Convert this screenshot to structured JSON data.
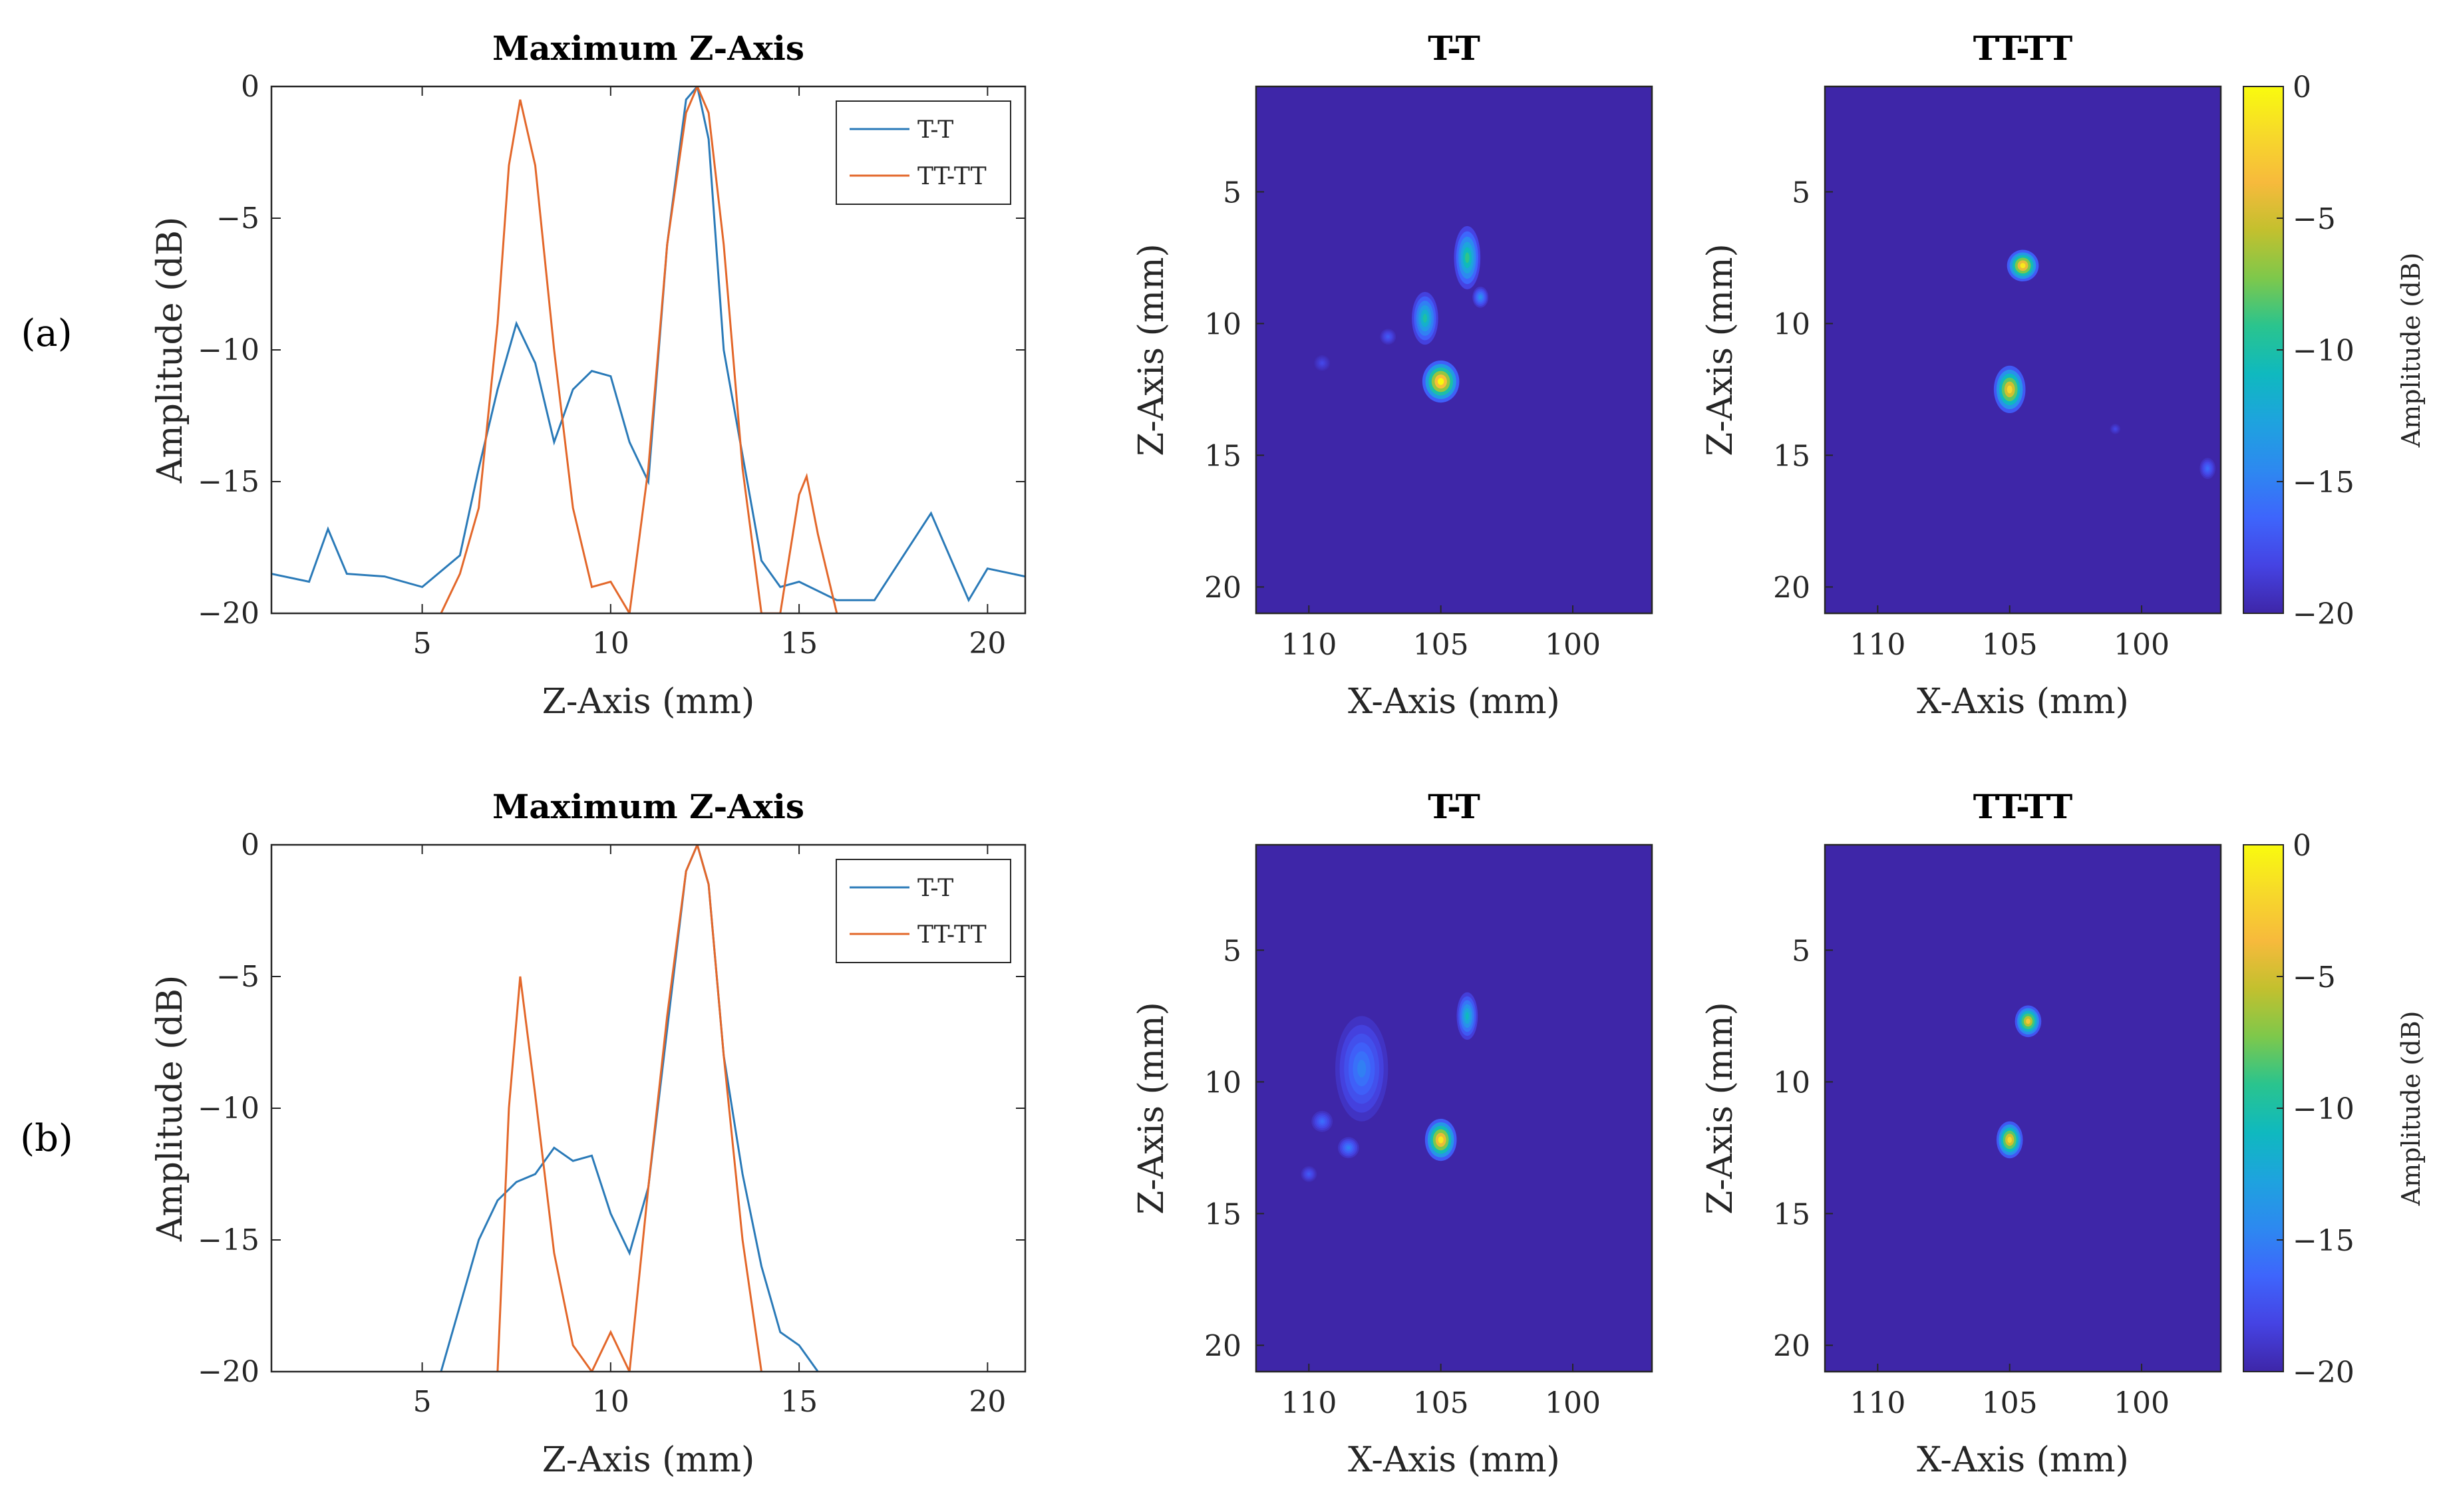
{
  "figure": {
    "row_labels": [
      "(a)",
      "(b)"
    ]
  },
  "colormap": [
    "#3e26a8",
    "#4543e3",
    "#3e65fc",
    "#2d89f0",
    "#1ea3de",
    "#0fb9bf",
    "#2ac48e",
    "#7ec84b",
    "#c3c02e",
    "#f7ba3c",
    "#f7d92a",
    "#f9fb0e"
  ],
  "colors": {
    "t_t": "#2a7ab8",
    "tt_tt": "#e3672a"
  },
  "chart_data": [
    {
      "type": "line",
      "panel": "a-profile",
      "title": "Maximum Z-Axis",
      "xlabel": "Z-Axis (mm)",
      "ylabel": "Amplitude (dB)",
      "xlim": [
        1,
        21
      ],
      "ylim": [
        -20,
        0
      ],
      "xticks": [
        "5",
        "10",
        "15",
        "20"
      ],
      "yticks": [
        "0",
        "−5",
        "−10",
        "−15",
        "−20"
      ],
      "legend_position": "top-right",
      "series": [
        {
          "name": "T-T",
          "x": [
            1.0,
            2.0,
            2.5,
            3.0,
            4.0,
            5.0,
            6.0,
            6.5,
            7.0,
            7.5,
            8.0,
            8.5,
            9.0,
            9.5,
            10.0,
            10.5,
            11.0,
            11.5,
            12.0,
            12.3,
            12.6,
            13.0,
            13.5,
            14.0,
            14.5,
            15.0,
            16.0,
            17.0,
            18.5,
            19.5,
            20.0,
            21.0
          ],
          "y": [
            -18.5,
            -18.8,
            -16.8,
            -18.5,
            -18.6,
            -19.0,
            -17.8,
            -14.5,
            -11.5,
            -9.0,
            -10.5,
            -13.5,
            -11.5,
            -10.8,
            -11.0,
            -13.5,
            -15.0,
            -6.0,
            -0.5,
            0.0,
            -2.0,
            -10.0,
            -14.0,
            -18.0,
            -19.0,
            -18.8,
            -19.5,
            -19.5,
            -16.2,
            -19.5,
            -18.3,
            -18.6
          ]
        },
        {
          "name": "TT-TT",
          "x": [
            5.5,
            6.0,
            6.5,
            7.0,
            7.3,
            7.6,
            8.0,
            8.5,
            9.0,
            9.5,
            10.0,
            10.5,
            11.0,
            11.5,
            12.0,
            12.3,
            12.6,
            13.0,
            13.5,
            14.0,
            14.5,
            15.0,
            15.2,
            15.5,
            16.0
          ],
          "y": [
            -20.0,
            -18.5,
            -16.0,
            -9.0,
            -3.0,
            -0.5,
            -3.0,
            -10.0,
            -16.0,
            -19.0,
            -18.8,
            -20.0,
            -14.5,
            -6.0,
            -1.0,
            0.0,
            -1.0,
            -6.0,
            -14.5,
            -20.0,
            -20.0,
            -15.5,
            -14.8,
            -17.0,
            -20.0
          ]
        }
      ]
    },
    {
      "type": "heatmap",
      "panel": "a-T-T",
      "title": "T-T",
      "xlabel": "X-Axis (mm)",
      "ylabel": "Z-Axis (mm)",
      "xlim": [
        112,
        97
      ],
      "ylim": [
        21,
        1
      ],
      "xticks": [
        "110",
        "105",
        "100"
      ],
      "yticks": [
        "5",
        "10",
        "15",
        "20"
      ],
      "value_range": [
        -20,
        0
      ],
      "background": -20,
      "spots": [
        {
          "x": 105,
          "z": 12.2,
          "rx": 0.7,
          "rz": 0.8,
          "peak": 0
        },
        {
          "x": 105.6,
          "z": 9.8,
          "rx": 0.5,
          "rz": 1.0,
          "peak": -10
        },
        {
          "x": 104,
          "z": 7.5,
          "rx": 0.5,
          "rz": 1.2,
          "peak": -9
        },
        {
          "x": 103.5,
          "z": 9.0,
          "rx": 0.3,
          "rz": 0.4,
          "peak": -14
        },
        {
          "x": 107,
          "z": 10.5,
          "rx": 0.3,
          "rz": 0.3,
          "peak": -17
        },
        {
          "x": 109.5,
          "z": 11.5,
          "rx": 0.3,
          "rz": 0.3,
          "peak": -18
        }
      ]
    },
    {
      "type": "heatmap",
      "panel": "a-TT-TT",
      "title": "TT-TT",
      "xlabel": "X-Axis (mm)",
      "ylabel": "Z-Axis (mm)",
      "xlim": [
        112,
        97
      ],
      "ylim": [
        21,
        1
      ],
      "xticks": [
        "110",
        "105",
        "100"
      ],
      "yticks": [
        "5",
        "10",
        "15",
        "20"
      ],
      "value_range": [
        -20,
        0
      ],
      "background": -20,
      "spots": [
        {
          "x": 104.5,
          "z": 7.8,
          "rx": 0.6,
          "rz": 0.6,
          "peak": -1
        },
        {
          "x": 105,
          "z": 12.5,
          "rx": 0.6,
          "rz": 0.9,
          "peak": -2
        },
        {
          "x": 97.5,
          "z": 15.5,
          "rx": 0.3,
          "rz": 0.4,
          "peak": -16
        },
        {
          "x": 101,
          "z": 14,
          "rx": 0.2,
          "rz": 0.2,
          "peak": -18
        }
      ],
      "colorbar": {
        "label": "Amplitude (dB)",
        "ticks": [
          "0",
          "−5",
          "−10",
          "−15",
          "−20"
        ]
      }
    },
    {
      "type": "line",
      "panel": "b-profile",
      "title": "Maximum Z-Axis",
      "xlabel": "Z-Axis (mm)",
      "ylabel": "Amplitude (dB)",
      "xlim": [
        1,
        21
      ],
      "ylim": [
        -20,
        0
      ],
      "xticks": [
        "5",
        "10",
        "15",
        "20"
      ],
      "yticks": [
        "0",
        "−5",
        "−10",
        "−15",
        "−20"
      ],
      "legend_position": "top-right",
      "series": [
        {
          "name": "T-T",
          "x": [
            5.5,
            6.0,
            6.5,
            7.0,
            7.5,
            8.0,
            8.5,
            9.0,
            9.5,
            10.0,
            10.5,
            11.0,
            11.5,
            12.0,
            12.3,
            12.6,
            13.0,
            13.5,
            14.0,
            14.5,
            15.0,
            15.5
          ],
          "y": [
            -20.0,
            -17.5,
            -15.0,
            -13.5,
            -12.8,
            -12.5,
            -11.5,
            -12.0,
            -11.8,
            -14.0,
            -15.5,
            -13.0,
            -7.0,
            -1.0,
            0.0,
            -1.5,
            -8.0,
            -12.5,
            -16.0,
            -18.5,
            -19.0,
            -20.0
          ]
        },
        {
          "name": "TT-TT",
          "x": [
            7.0,
            7.3,
            7.6,
            8.0,
            8.5,
            9.0,
            9.5,
            10.0,
            10.5,
            11.0,
            11.5,
            12.0,
            12.3,
            12.6,
            13.0,
            13.5,
            14.0
          ],
          "y": [
            -20.0,
            -10.0,
            -5.0,
            -9.5,
            -15.5,
            -19.0,
            -20.0,
            -18.5,
            -20.0,
            -13.0,
            -6.5,
            -1.0,
            0.0,
            -1.5,
            -8.0,
            -15.0,
            -20.0
          ]
        }
      ]
    },
    {
      "type": "heatmap",
      "panel": "b-T-T",
      "title": "T-T",
      "xlabel": "X-Axis (mm)",
      "ylabel": "Z-Axis (mm)",
      "xlim": [
        112,
        97
      ],
      "ylim": [
        21,
        1
      ],
      "xticks": [
        "110",
        "105",
        "100"
      ],
      "yticks": [
        "5",
        "10",
        "15",
        "20"
      ],
      "value_range": [
        -20,
        0
      ],
      "background": -20,
      "spots": [
        {
          "x": 105,
          "z": 12.2,
          "rx": 0.6,
          "rz": 0.8,
          "peak": -1
        },
        {
          "x": 104,
          "z": 7.5,
          "rx": 0.4,
          "rz": 0.9,
          "peak": -11
        },
        {
          "x": 108,
          "z": 9.5,
          "rx": 1.0,
          "rz": 2.0,
          "peak": -15
        },
        {
          "x": 109.5,
          "z": 11.5,
          "rx": 0.4,
          "rz": 0.4,
          "peak": -16
        },
        {
          "x": 108.5,
          "z": 12.5,
          "rx": 0.4,
          "rz": 0.4,
          "peak": -15
        },
        {
          "x": 110,
          "z": 13.5,
          "rx": 0.3,
          "rz": 0.3,
          "peak": -17
        }
      ]
    },
    {
      "type": "heatmap",
      "panel": "b-TT-TT",
      "title": "TT-TT",
      "xlabel": "X-Axis (mm)",
      "ylabel": "Z-Axis (mm)",
      "xlim": [
        112,
        97
      ],
      "ylim": [
        21,
        1
      ],
      "xticks": [
        "110",
        "105",
        "100"
      ],
      "yticks": [
        "5",
        "10",
        "15",
        "20"
      ],
      "value_range": [
        -20,
        0
      ],
      "background": -20,
      "spots": [
        {
          "x": 104.3,
          "z": 7.7,
          "rx": 0.5,
          "rz": 0.6,
          "peak": -3
        },
        {
          "x": 105,
          "z": 12.2,
          "rx": 0.5,
          "rz": 0.7,
          "peak": -2
        }
      ],
      "colorbar": {
        "label": "Amplitude (dB)",
        "ticks": [
          "0",
          "−5",
          "−10",
          "−15",
          "−20"
        ]
      }
    }
  ]
}
